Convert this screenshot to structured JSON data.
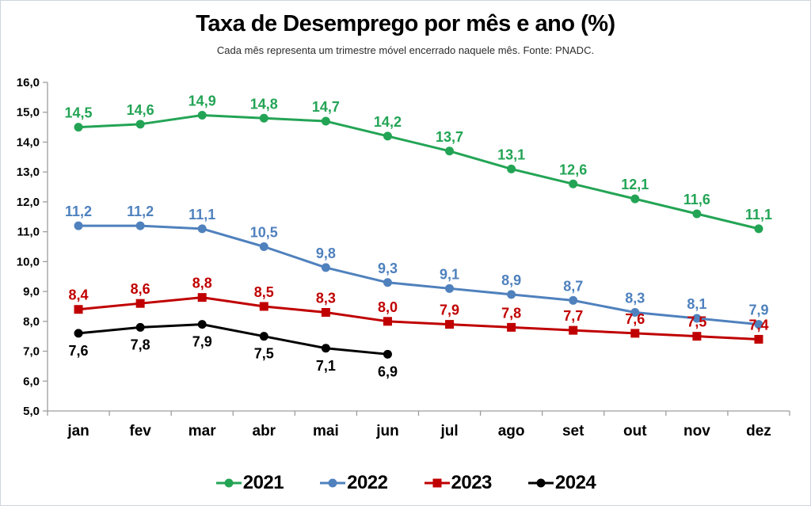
{
  "window": {
    "border_color": "#ccd5dd",
    "background": "#ffffff"
  },
  "header": {
    "title": "Taxa de Desemprego por mês e ano (%)",
    "subtitle": "Cada mês representa um trimestre móvel encerrado naquele mês. Fonte: PNADC."
  },
  "chart_data": {
    "type": "line",
    "title": "Taxa de Desemprego por mês e ano (%)",
    "subtitle": "Cada mês representa um trimestre móvel encerrado naquele mês. Fonte: PNADC.",
    "xlabel": "",
    "ylabel": "",
    "categories": [
      "jan",
      "fev",
      "mar",
      "abr",
      "mai",
      "jun",
      "jul",
      "ago",
      "set",
      "out",
      "nov",
      "dez"
    ],
    "series": [
      {
        "name": "2021",
        "color": "#23A455",
        "marker": "circle",
        "label_position": "above",
        "values": [
          14.5,
          14.6,
          14.9,
          14.8,
          14.7,
          14.2,
          13.7,
          13.1,
          12.6,
          12.1,
          11.6,
          11.1
        ],
        "labels": [
          "14,5",
          "14,6",
          "14,9",
          "14,8",
          "14,7",
          "14,2",
          "13,7",
          "13,1",
          "12,6",
          "12,1",
          "11,6",
          "11,1"
        ]
      },
      {
        "name": "2022",
        "color": "#4F81BD",
        "marker": "circle",
        "label_position": "above",
        "values": [
          11.2,
          11.2,
          11.1,
          10.5,
          9.8,
          9.3,
          9.1,
          8.9,
          8.7,
          8.3,
          8.1,
          7.9
        ],
        "labels": [
          "11,2",
          "11,2",
          "11,1",
          "10,5",
          "9,8",
          "9,3",
          "9,1",
          "8,9",
          "8,7",
          "8,3",
          "8,1",
          "7,9"
        ]
      },
      {
        "name": "2023",
        "color": "#C00000",
        "marker": "square",
        "label_position": "above",
        "values": [
          8.4,
          8.6,
          8.8,
          8.5,
          8.3,
          8.0,
          7.9,
          7.8,
          7.7,
          7.6,
          7.5,
          7.4
        ],
        "labels": [
          "8,4",
          "8,6",
          "8,8",
          "8,5",
          "8,3",
          "8,0",
          "7,9",
          "7,8",
          "7,7",
          "7,6",
          "7,5",
          "7,4"
        ]
      },
      {
        "name": "2024",
        "color": "#000000",
        "marker": "circle",
        "label_position": "below",
        "values": [
          7.6,
          7.8,
          7.9,
          7.5,
          7.1,
          6.9
        ],
        "labels": [
          "7,6",
          "7,8",
          "7,9",
          "7,5",
          "7,1",
          "6,9"
        ]
      }
    ],
    "y_axis": {
      "min": 5,
      "max": 16,
      "step": 1,
      "tick_labels": [
        "5,0",
        "6,0",
        "7,0",
        "8,0",
        "9,0",
        "10,0",
        "11,0",
        "12,0",
        "13,0",
        "14,0",
        "15,0",
        "16,0"
      ]
    },
    "grid": false,
    "legend_position": "bottom",
    "axis_color": "#9d9d9d"
  }
}
